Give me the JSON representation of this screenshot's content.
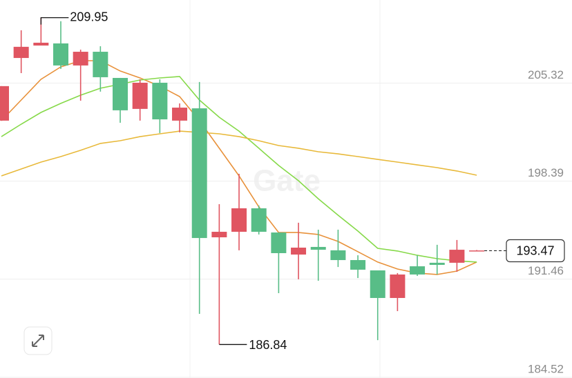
{
  "chart_data": {
    "type": "candlestick",
    "watermark": "Gate",
    "up_color": "#58bd87",
    "down_color": "#e05561",
    "ylim": [
      184.52,
      211.2
    ],
    "yticks": [
      184.52,
      191.46,
      198.39,
      205.32
    ],
    "grid": true,
    "open": [
      205.11,
      207.89,
      208.18,
      206.57,
      207.54,
      205.74,
      203.4,
      205.35,
      202.76,
      203.59,
      194.37,
      194.81,
      196.47,
      194.81,
      193.3,
      193.69,
      193.54,
      192.81,
      192.13,
      190.13,
      191.79,
      191.79,
      192.47,
      193.54,
      193.49
    ],
    "high": [
      205.11,
      209.06,
      209.95,
      209.7,
      207.69,
      207.93,
      205.69,
      205.59,
      205.59,
      203.89,
      205.4,
      196.76,
      198.91,
      196.67,
      194.76,
      195.45,
      194.96,
      194.96,
      193.15,
      192.08,
      191.89,
      193.15,
      193.89,
      194.23,
      193.52
    ],
    "low": [
      202.67,
      206.03,
      207.98,
      206.33,
      204.08,
      204.72,
      202.52,
      202.67,
      201.79,
      201.84,
      189.01,
      186.84,
      193.5,
      194.62,
      190.47,
      191.45,
      191.35,
      192.32,
      191.54,
      187.15,
      189.2,
      191.69,
      191.79,
      191.98,
      193.44
    ],
    "close": [
      202.67,
      207.1,
      207.98,
      208.13,
      206.57,
      207.54,
      205.69,
      203.5,
      205.35,
      202.67,
      203.54,
      194.42,
      194.81,
      196.47,
      194.76,
      193.2,
      193.74,
      193.5,
      192.81,
      192.08,
      190.13,
      192.37,
      192.62,
      192.62,
      193.47
    ],
    "ma": [
      {
        "color": "#e8913a",
        "values": [
          202.67,
          204.13,
          205.59,
          206.47,
          206.91,
          206.91,
          206.18,
          205.69,
          205.11,
          204.37,
          202.67,
          200.72,
          198.76,
          196.57,
          194.76,
          194.76,
          194.62,
          194.13,
          193.4,
          192.67,
          192.18,
          191.89,
          191.79,
          192.03,
          192.67
        ]
      },
      {
        "color": "#86d949",
        "values": [
          201.54,
          202.42,
          203.25,
          203.89,
          204.47,
          204.96,
          205.25,
          205.54,
          205.69,
          205.79,
          204.13,
          202.91,
          201.93,
          200.72,
          199.5,
          198.42,
          197.15,
          195.98,
          194.86,
          193.64,
          193.45,
          193.15,
          192.91,
          192.76,
          192.67
        ]
      },
      {
        "color": "#e8b93a",
        "values": [
          198.76,
          199.25,
          199.74,
          200.13,
          200.57,
          201.06,
          201.25,
          201.54,
          201.74,
          201.93,
          201.84,
          201.74,
          201.54,
          201.25,
          200.91,
          200.72,
          200.47,
          200.32,
          200.13,
          199.93,
          199.74,
          199.54,
          199.35,
          199.11,
          198.81
        ]
      }
    ]
  }
}
